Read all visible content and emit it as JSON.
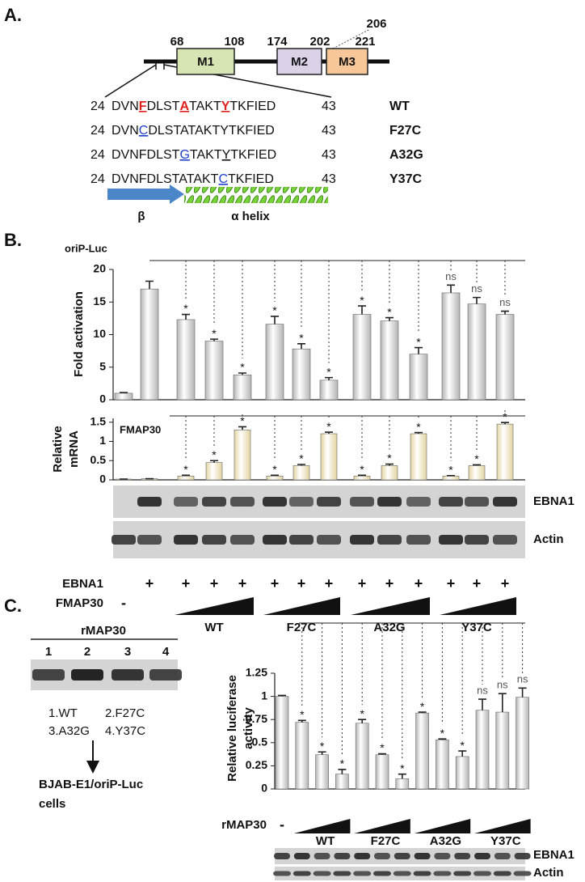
{
  "panel_a": {
    "label": "A.",
    "domains": [
      {
        "name": "M1",
        "start": "68",
        "end": "108",
        "color": "#d7e4b4"
      },
      {
        "name": "M2",
        "start": "174",
        "end": "202",
        "color": "#dcd2e8"
      },
      {
        "name": "M3",
        "start": "206",
        "end": "221",
        "color": "#f7c699"
      }
    ],
    "sequences": [
      {
        "start": "24",
        "end": "43",
        "name": "WT",
        "parts": [
          {
            "text": "DVN",
            "style": "plain"
          },
          {
            "text": "F",
            "style": "red"
          },
          {
            "text": "DLST",
            "style": "plain"
          },
          {
            "text": "A",
            "style": "red"
          },
          {
            "text": "TAKT",
            "style": "plain"
          },
          {
            "text": "Y",
            "style": "red"
          },
          {
            "text": "TKFIED",
            "style": "plain"
          }
        ]
      },
      {
        "start": "24",
        "end": "43",
        "name": "F27C",
        "parts": [
          {
            "text": "DVN",
            "style": "plain"
          },
          {
            "text": "C",
            "style": "blue"
          },
          {
            "text": "DLSTATAKTYTKFIED",
            "style": "plain"
          }
        ]
      },
      {
        "start": "24",
        "end": "43",
        "name": "A32G",
        "parts": [
          {
            "text": "DVNFDLST",
            "style": "plain"
          },
          {
            "text": "G",
            "style": "blue"
          },
          {
            "text": "TAKT",
            "style": "plain"
          },
          {
            "text": "Y",
            "style": "underline"
          },
          {
            "text": "TKFIED",
            "style": "plain"
          }
        ]
      },
      {
        "start": "24",
        "end": "43",
        "name": "Y37C",
        "parts": [
          {
            "text": "DVNFDLSTATAKT",
            "style": "plain"
          },
          {
            "text": "C",
            "style": "blue"
          },
          {
            "text": "TKFIED",
            "style": "plain"
          }
        ]
      }
    ],
    "structure": {
      "beta": "β",
      "helix": "α helix"
    }
  },
  "panel_b": {
    "label": "B.",
    "blots": [
      "EBNA1",
      "Actin"
    ],
    "rows": [
      {
        "label": "EBNA1",
        "lanes": [
          null,
          "+",
          "+",
          "+",
          "+",
          "+",
          "+",
          "+",
          "+",
          "+",
          "+",
          "+",
          "+",
          "+"
        ]
      },
      {
        "label": "FMAP30",
        "lanes": [
          "-",
          null,
          null,
          null,
          null,
          null,
          null,
          null,
          null,
          null,
          null,
          null,
          null,
          null
        ]
      }
    ],
    "groups": [
      "WT",
      "F27C",
      "A32G",
      "Y37C"
    ]
  },
  "panel_c": {
    "label": "C.",
    "blot_title": "rMAP30",
    "lanes": [
      "1",
      "2",
      "3",
      "4"
    ],
    "legend": [
      "1.WT",
      "2.F27C",
      "3.A32G",
      "4.Y37C"
    ],
    "cells": [
      "BJAB-E1/oriP-Luc",
      "cells"
    ],
    "blots": [
      "EBNA1",
      "Actin"
    ],
    "row": {
      "label": "rMAP30",
      "lanes": [
        "-",
        null,
        null,
        null,
        null,
        null,
        null,
        null,
        null,
        null,
        null,
        null,
        null
      ]
    },
    "groups": [
      "WT",
      "F27C",
      "A32G",
      "Y37C"
    ]
  },
  "chart_data": [
    {
      "type": "bar",
      "y_label": [
        "Fold activation"
      ],
      "annotation": "oriP-Luc",
      "color": "#b4b4b4",
      "values": [
        1,
        17,
        12.3,
        9,
        3.8,
        11.6,
        7.8,
        3,
        13.1,
        12.1,
        7,
        16.4,
        14.7,
        13.1
      ],
      "errors": [
        0.1,
        1.2,
        0.8,
        0.3,
        0.3,
        1.2,
        0.8,
        0.4,
        1.3,
        0.5,
        1,
        1.2,
        1,
        0.5
      ],
      "significance": [
        null,
        null,
        "*",
        "*",
        "*",
        "*",
        "*",
        "*",
        "*",
        "*",
        "*",
        "ns",
        "ns",
        "ns"
      ],
      "ylim": [
        0,
        20
      ],
      "yticks": [
        0,
        5,
        10,
        15,
        20
      ]
    },
    {
      "type": "bar",
      "y_label": [
        "Relative",
        "mRNA"
      ],
      "annotation": "FMAP30",
      "color": "#e3d4a0",
      "values": [
        0.02,
        0.03,
        0.1,
        0.45,
        1.3,
        0.1,
        0.37,
        1.2,
        0.1,
        0.37,
        1.2,
        0.1,
        0.37,
        1.45
      ],
      "errors": [
        0,
        0,
        0.02,
        0.05,
        0.08,
        0.02,
        0.03,
        0.04,
        0.02,
        0.04,
        0.03,
        0.01,
        0.02,
        0.04
      ],
      "significance": [
        null,
        null,
        "*",
        "*",
        "*",
        "*",
        "*",
        "*",
        "*",
        "*",
        "*",
        "*",
        "*",
        "*"
      ],
      "ylim": [
        0,
        1.6
      ],
      "yticks": [
        0,
        0.5,
        1,
        1.5
      ]
    },
    {
      "type": "bar",
      "y_label": [
        "Relative luciferase",
        "activity"
      ],
      "color": "#b4b4b4",
      "values": [
        1,
        0.72,
        0.37,
        0.16,
        0.71,
        0.37,
        0.11,
        0.82,
        0.53,
        0.35,
        0.85,
        0.83,
        0.99
      ],
      "errors": [
        0.01,
        0.02,
        0.03,
        0.05,
        0.04,
        0.01,
        0.05,
        0.01,
        0.01,
        0.06,
        0.12,
        0.2,
        0.1
      ],
      "significance": [
        null,
        "*",
        "*",
        "*",
        "*",
        "*",
        "*",
        "*",
        "*",
        "*",
        "ns",
        "ns",
        "ns"
      ],
      "ylim": [
        0,
        1.25
      ],
      "yticks": [
        0,
        0.25,
        0.5,
        0.75,
        1,
        1.25
      ]
    }
  ]
}
